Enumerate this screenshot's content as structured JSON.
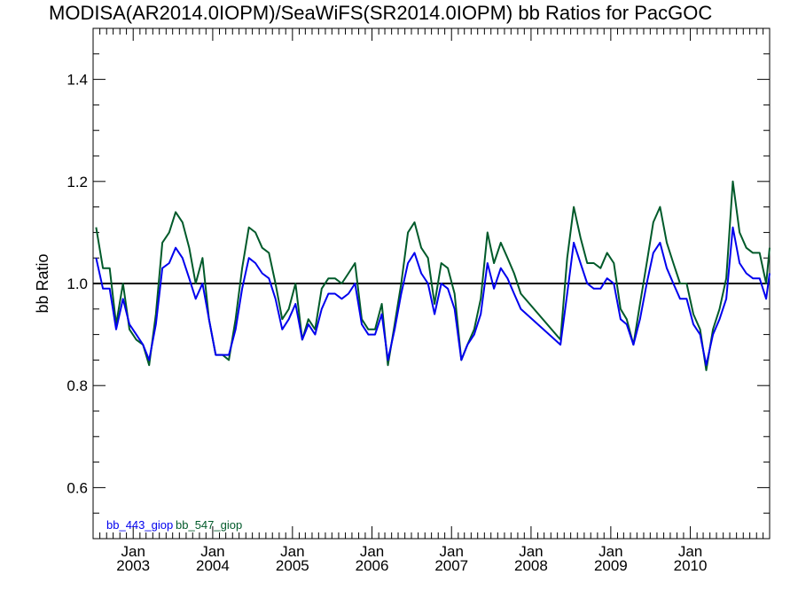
{
  "chart_data": {
    "type": "line",
    "title": "MODISA(AR2014.0IOPM)/SeaWiFS(SR2014.0IOPM)  bb Ratios for PacGOC",
    "xlabel": "",
    "ylabel": "bb Ratio",
    "xlim": [
      "2002-07-01",
      "2010-12-31"
    ],
    "ylim": [
      0.5,
      1.5
    ],
    "yticks": [
      0.6,
      0.8,
      1.0,
      1.2,
      1.4
    ],
    "ytick_labels": [
      "0.6",
      "0.8",
      "1.0",
      "1.2",
      "1.4"
    ],
    "xticks": [
      {
        "date": "2003-01-01",
        "month": "Jan",
        "year": "2003"
      },
      {
        "date": "2004-01-01",
        "month": "Jan",
        "year": "2004"
      },
      {
        "date": "2005-01-01",
        "month": "Jan",
        "year": "2005"
      },
      {
        "date": "2006-01-01",
        "month": "Jan",
        "year": "2006"
      },
      {
        "date": "2007-01-01",
        "month": "Jan",
        "year": "2007"
      },
      {
        "date": "2008-01-01",
        "month": "Jan",
        "year": "2008"
      },
      {
        "date": "2009-01-01",
        "month": "Jan",
        "year": "2009"
      },
      {
        "date": "2010-01-01",
        "month": "Jan",
        "year": "2010"
      }
    ],
    "reference_line": 1.0,
    "grid": false,
    "legend_position": "bottom-left",
    "series": [
      {
        "name": "bb_443_giop",
        "color": "#0000ee",
        "points": [
          [
            "2002-07-15",
            1.05
          ],
          [
            "2002-08-15",
            0.99
          ],
          [
            "2002-09-15",
            0.99
          ],
          [
            "2002-10-15",
            0.91
          ],
          [
            "2002-11-15",
            0.97
          ],
          [
            "2002-12-15",
            0.92
          ],
          [
            "2003-01-15",
            0.9
          ],
          [
            "2003-02-15",
            0.88
          ],
          [
            "2003-03-15",
            0.85
          ],
          [
            "2003-04-15",
            0.92
          ],
          [
            "2003-05-15",
            1.03
          ],
          [
            "2003-06-15",
            1.04
          ],
          [
            "2003-07-15",
            1.07
          ],
          [
            "2003-08-15",
            1.05
          ],
          [
            "2003-09-15",
            1.01
          ],
          [
            "2003-10-15",
            0.97
          ],
          [
            "2003-11-15",
            1.0
          ],
          [
            "2003-12-15",
            0.93
          ],
          [
            "2004-01-15",
            0.86
          ],
          [
            "2004-02-15",
            0.86
          ],
          [
            "2004-03-15",
            0.86
          ],
          [
            "2004-04-15",
            0.91
          ],
          [
            "2004-05-15",
            0.99
          ],
          [
            "2004-06-15",
            1.05
          ],
          [
            "2004-07-15",
            1.04
          ],
          [
            "2004-08-15",
            1.02
          ],
          [
            "2004-09-15",
            1.01
          ],
          [
            "2004-10-15",
            0.97
          ],
          [
            "2004-11-15",
            0.91
          ],
          [
            "2004-12-15",
            0.93
          ],
          [
            "2005-01-15",
            0.96
          ],
          [
            "2005-02-15",
            0.89
          ],
          [
            "2005-03-15",
            0.92
          ],
          [
            "2005-04-15",
            0.9
          ],
          [
            "2005-05-15",
            0.95
          ],
          [
            "2005-06-15",
            0.98
          ],
          [
            "2005-07-15",
            0.98
          ],
          [
            "2005-08-15",
            0.97
          ],
          [
            "2005-09-15",
            0.98
          ],
          [
            "2005-10-15",
            1.0
          ],
          [
            "2005-11-15",
            0.92
          ],
          [
            "2005-12-15",
            0.9
          ],
          [
            "2006-01-15",
            0.9
          ],
          [
            "2006-02-15",
            0.94
          ],
          [
            "2006-03-15",
            0.85
          ],
          [
            "2006-04-15",
            0.91
          ],
          [
            "2006-05-15",
            0.98
          ],
          [
            "2006-06-15",
            1.04
          ],
          [
            "2006-07-15",
            1.06
          ],
          [
            "2006-08-15",
            1.02
          ],
          [
            "2006-09-15",
            1.0
          ],
          [
            "2006-10-15",
            0.94
          ],
          [
            "2006-11-15",
            1.0
          ],
          [
            "2006-12-15",
            0.99
          ],
          [
            "2007-01-15",
            0.95
          ],
          [
            "2007-02-15",
            0.85
          ],
          [
            "2007-03-15",
            0.88
          ],
          [
            "2007-04-15",
            0.9
          ],
          [
            "2007-05-15",
            0.94
          ],
          [
            "2007-06-15",
            1.04
          ],
          [
            "2007-07-15",
            0.99
          ],
          [
            "2007-08-15",
            1.03
          ],
          [
            "2007-09-15",
            1.01
          ],
          [
            "2007-10-15",
            0.98
          ],
          [
            "2007-11-15",
            0.95
          ],
          [
            "2008-05-15",
            0.88
          ],
          [
            "2008-06-15",
            0.98
          ],
          [
            "2008-07-15",
            1.08
          ],
          [
            "2008-08-15",
            1.04
          ],
          [
            "2008-09-15",
            1.0
          ],
          [
            "2008-10-15",
            0.99
          ],
          [
            "2008-11-15",
            0.99
          ],
          [
            "2008-12-15",
            1.01
          ],
          [
            "2009-01-15",
            1.0
          ],
          [
            "2009-02-15",
            0.93
          ],
          [
            "2009-03-15",
            0.92
          ],
          [
            "2009-04-15",
            0.88
          ],
          [
            "2009-05-15",
            0.93
          ],
          [
            "2009-06-15",
            1.0
          ],
          [
            "2009-07-15",
            1.06
          ],
          [
            "2009-08-15",
            1.08
          ],
          [
            "2009-09-15",
            1.03
          ],
          [
            "2009-10-15",
            1.0
          ],
          [
            "2009-11-15",
            0.97
          ],
          [
            "2009-12-15",
            0.97
          ],
          [
            "2010-01-15",
            0.92
          ],
          [
            "2010-02-15",
            0.9
          ],
          [
            "2010-03-15",
            0.84
          ],
          [
            "2010-04-15",
            0.9
          ],
          [
            "2010-05-15",
            0.93
          ],
          [
            "2010-06-15",
            0.97
          ],
          [
            "2010-07-15",
            1.11
          ],
          [
            "2010-08-15",
            1.04
          ],
          [
            "2010-09-15",
            1.02
          ],
          [
            "2010-10-15",
            1.01
          ],
          [
            "2010-11-15",
            1.01
          ],
          [
            "2010-12-15",
            0.97
          ],
          [
            "2010-12-31",
            1.02
          ]
        ]
      },
      {
        "name": "bb_547_giop",
        "color": "#005a2a",
        "points": [
          [
            "2002-07-15",
            1.11
          ],
          [
            "2002-08-15",
            1.03
          ],
          [
            "2002-09-15",
            1.03
          ],
          [
            "2002-10-15",
            0.92
          ],
          [
            "2002-11-15",
            1.0
          ],
          [
            "2002-12-15",
            0.91
          ],
          [
            "2003-01-15",
            0.89
          ],
          [
            "2003-02-15",
            0.88
          ],
          [
            "2003-03-15",
            0.84
          ],
          [
            "2003-04-15",
            0.94
          ],
          [
            "2003-05-15",
            1.08
          ],
          [
            "2003-06-15",
            1.1
          ],
          [
            "2003-07-15",
            1.14
          ],
          [
            "2003-08-15",
            1.12
          ],
          [
            "2003-09-15",
            1.07
          ],
          [
            "2003-10-15",
            1.0
          ],
          [
            "2003-11-15",
            1.05
          ],
          [
            "2003-12-15",
            0.93
          ],
          [
            "2004-01-15",
            0.86
          ],
          [
            "2004-02-15",
            0.86
          ],
          [
            "2004-03-15",
            0.85
          ],
          [
            "2004-04-15",
            0.93
          ],
          [
            "2004-05-15",
            1.03
          ],
          [
            "2004-06-15",
            1.11
          ],
          [
            "2004-07-15",
            1.1
          ],
          [
            "2004-08-15",
            1.07
          ],
          [
            "2004-09-15",
            1.06
          ],
          [
            "2004-10-15",
            1.0
          ],
          [
            "2004-11-15",
            0.93
          ],
          [
            "2004-12-15",
            0.95
          ],
          [
            "2005-01-15",
            1.0
          ],
          [
            "2005-02-15",
            0.89
          ],
          [
            "2005-03-15",
            0.93
          ],
          [
            "2005-04-15",
            0.91
          ],
          [
            "2005-05-15",
            0.99
          ],
          [
            "2005-06-15",
            1.01
          ],
          [
            "2005-07-15",
            1.01
          ],
          [
            "2005-08-15",
            1.0
          ],
          [
            "2005-09-15",
            1.02
          ],
          [
            "2005-10-15",
            1.04
          ],
          [
            "2005-11-15",
            0.93
          ],
          [
            "2005-12-15",
            0.91
          ],
          [
            "2006-01-15",
            0.91
          ],
          [
            "2006-02-15",
            0.96
          ],
          [
            "2006-03-15",
            0.84
          ],
          [
            "2006-04-15",
            0.92
          ],
          [
            "2006-05-15",
            1.0
          ],
          [
            "2006-06-15",
            1.1
          ],
          [
            "2006-07-15",
            1.12
          ],
          [
            "2006-08-15",
            1.07
          ],
          [
            "2006-09-15",
            1.05
          ],
          [
            "2006-10-15",
            0.96
          ],
          [
            "2006-11-15",
            1.04
          ],
          [
            "2006-12-15",
            1.03
          ],
          [
            "2007-01-15",
            0.98
          ],
          [
            "2007-02-15",
            0.85
          ],
          [
            "2007-03-15",
            0.88
          ],
          [
            "2007-04-15",
            0.91
          ],
          [
            "2007-05-15",
            0.97
          ],
          [
            "2007-06-15",
            1.1
          ],
          [
            "2007-07-15",
            1.04
          ],
          [
            "2007-08-15",
            1.08
          ],
          [
            "2007-09-15",
            1.05
          ],
          [
            "2007-10-15",
            1.02
          ],
          [
            "2007-11-15",
            0.98
          ],
          [
            "2008-05-15",
            0.89
          ],
          [
            "2008-06-15",
            1.05
          ],
          [
            "2008-07-15",
            1.15
          ],
          [
            "2008-08-15",
            1.09
          ],
          [
            "2008-09-15",
            1.04
          ],
          [
            "2008-10-15",
            1.04
          ],
          [
            "2008-11-15",
            1.03
          ],
          [
            "2008-12-15",
            1.06
          ],
          [
            "2009-01-15",
            1.04
          ],
          [
            "2009-02-15",
            0.95
          ],
          [
            "2009-03-15",
            0.93
          ],
          [
            "2009-04-15",
            0.88
          ],
          [
            "2009-05-15",
            0.96
          ],
          [
            "2009-06-15",
            1.04
          ],
          [
            "2009-07-15",
            1.12
          ],
          [
            "2009-08-15",
            1.15
          ],
          [
            "2009-09-15",
            1.08
          ],
          [
            "2009-10-15",
            1.04
          ],
          [
            "2009-11-15",
            1.0
          ],
          [
            "2009-12-15",
            1.0
          ],
          [
            "2010-01-15",
            0.94
          ],
          [
            "2010-02-15",
            0.91
          ],
          [
            "2010-03-15",
            0.83
          ],
          [
            "2010-04-15",
            0.91
          ],
          [
            "2010-05-15",
            0.95
          ],
          [
            "2010-06-15",
            1.01
          ],
          [
            "2010-07-15",
            1.2
          ],
          [
            "2010-08-15",
            1.1
          ],
          [
            "2010-09-15",
            1.07
          ],
          [
            "2010-10-15",
            1.06
          ],
          [
            "2010-11-15",
            1.06
          ],
          [
            "2010-12-15",
            1.0
          ],
          [
            "2010-12-31",
            1.07
          ]
        ]
      }
    ]
  }
}
